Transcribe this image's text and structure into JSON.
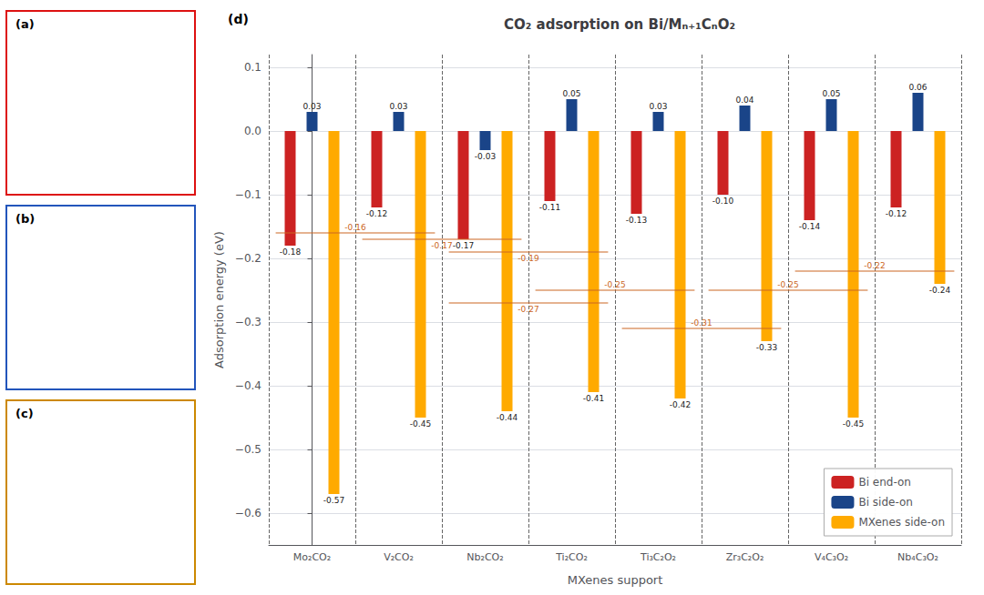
{
  "chart_data": {
    "type": "bar",
    "title": "CO₂ adsorption on Bi/Mₙ₊₁CₙO₂",
    "x_label": "MXenes support",
    "y_label": "Adsorption energy (eV)",
    "categories": [
      "Mo₂CO₂",
      "V₂CO₂",
      "Nb₂CO₂",
      "Ti₂CO₂",
      "Ti₃C₂O₂",
      "Zr₃C₂O₂",
      "V₄C₃O₂",
      "Nb₄C₃O₂"
    ],
    "series": [
      {
        "name": "Bi end-on",
        "color": "#cc2222",
        "values": [
          -0.18,
          -0.12,
          -0.17,
          -0.11,
          -0.13,
          -0.1,
          -0.14,
          -0.12
        ],
        "value_labels": [
          "-0.18",
          "-0.12",
          "-0.17",
          "-0.11",
          "-0.13",
          "-0.10",
          "-0.14",
          "-0.12"
        ]
      },
      {
        "name": "Bi side-on",
        "color": "#1a4488",
        "values": [
          0.03,
          0.03,
          -0.03,
          0.05,
          0.03,
          0.04,
          0.05,
          0.06
        ],
        "value_labels": [
          "0.03",
          "0.03",
          "-0.03",
          "0.05",
          "0.03",
          "0.04",
          "0.05",
          "0.06"
        ]
      },
      {
        "name": "MXenes side-on",
        "color": "#ffaa00",
        "values": [
          -0.57,
          -0.45,
          -0.44,
          -0.41,
          -0.42,
          -0.33,
          -0.45,
          -0.24
        ],
        "value_labels": [
          "-0.57",
          "-0.45",
          "-0.44",
          "-0.41",
          "-0.42",
          "-0.33",
          "-0.45",
          "-0.24"
        ]
      }
    ],
    "ylim": [
      -0.65,
      0.12
    ],
    "yticks": [
      {
        "value": -0.6,
        "label": "−0.6"
      },
      {
        "value": -0.5,
        "label": "−0.5"
      },
      {
        "value": -0.4,
        "label": "−0.4"
      },
      {
        "value": -0.3,
        "label": "−0.3"
      },
      {
        "value": -0.2,
        "label": "−0.2"
      },
      {
        "value": -0.1,
        "label": "−0.1"
      },
      {
        "value": 0,
        "label": "0.0"
      },
      0.1
    ],
    "grid": true,
    "legend": "lower right",
    "data_labels": true,
    "hlines": [
      {
        "y": -0.16,
        "from": "Mo₂CO₂",
        "to": "V₂CO₂",
        "label": "-0.16",
        "color": "#cc6622"
      },
      {
        "y": -0.17,
        "from": "V₂CO₂",
        "to": "Nb₂CO₂",
        "label": "-0.17",
        "color": "#cc6622"
      },
      {
        "y": -0.19,
        "from": "Nb₂CO₂",
        "to": "Ti₂CO₂",
        "label": "-0.19",
        "color": "#cc6622"
      },
      {
        "y": -0.27,
        "from": "Nb₂CO₂",
        "to": "Ti₂CO₂",
        "label": "-0.27",
        "color": "#cc6622"
      },
      {
        "y": -0.25,
        "from": "Ti₂CO₂",
        "to": "Ti₃C₂O₂",
        "label": "-0.25",
        "color": "#cc6622"
      },
      {
        "y": -0.31,
        "from": "Ti₃C₂O₂",
        "to": "Zr₃C₂O₂",
        "label": "-0.31",
        "color": "#cc6622"
      },
      {
        "y": -0.25,
        "from": "Zr₃C₂O₂",
        "to": "V₄C₃O₂",
        "label": "-0.25",
        "color": "#cc6622"
      },
      {
        "y": -0.22,
        "from": "V₄C₃O₂",
        "to": "Nb₄C₃O₂",
        "label": "-0.22",
        "color": "#cc6622"
      }
    ],
    "annotations": [
      {
        "text": "(a)",
        "color": "#dd1111"
      },
      {
        "text": "(b)",
        "color": "#2255bb"
      },
      {
        "text": "(c)",
        "color": "#cc8800"
      },
      {
        "text": "(d)"
      }
    ]
  }
}
